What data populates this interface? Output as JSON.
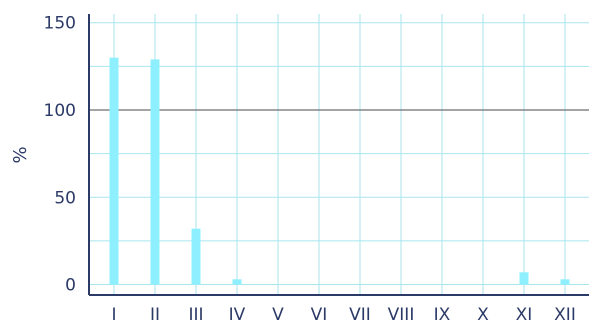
{
  "chart_data": {
    "type": "bar",
    "title": "",
    "xlabel": "",
    "ylabel": "%",
    "categories": [
      "I",
      "II",
      "III",
      "IV",
      "V",
      "VI",
      "VII",
      "VIII",
      "IX",
      "X",
      "XI",
      "XII"
    ],
    "values": [
      130,
      129,
      32,
      3,
      0,
      0,
      0,
      0,
      0,
      0,
      7,
      3
    ],
    "ylim": [
      -6,
      155
    ],
    "yticks": [
      0,
      50,
      100,
      150
    ],
    "reference_line": 100,
    "grid": true,
    "colors": {
      "bar": "#8ef0ff",
      "grid": "#a8e6ee",
      "reference_line": "#6e6e6e",
      "axis": "#2b3a67",
      "text": "#2b3a67"
    }
  }
}
